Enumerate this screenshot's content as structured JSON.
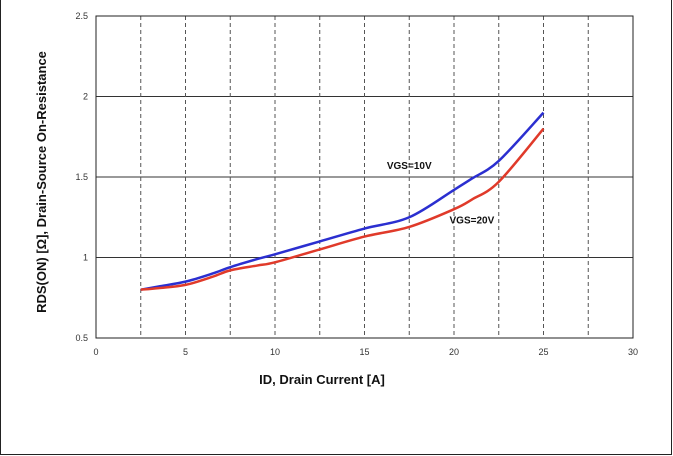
{
  "chart_data": {
    "type": "line",
    "title": "",
    "xlabel": "ID, Drain Current [A]",
    "ylabel": "RDS(ON) [Ω], Drain-Source On-Resistance",
    "xlim": [
      0,
      30
    ],
    "ylim": [
      0.5,
      2.5
    ],
    "x_ticks": [
      0,
      5,
      10,
      15,
      20,
      25,
      30
    ],
    "y_ticks": [
      0.5,
      1,
      1.5,
      2,
      2.5
    ],
    "x_tick_labels": [
      "0",
      "5",
      "10",
      "15",
      "20",
      "25",
      "30"
    ],
    "y_tick_labels": [
      "0.5",
      "1",
      "1.5",
      "2",
      "2.5"
    ],
    "grid": {
      "horizontal": "solid",
      "vertical": "dashed"
    },
    "legend": "none",
    "series": [
      {
        "name": "VGS=10V",
        "color": "#2b2fd0",
        "x": [
          2.5,
          3.5,
          5,
          6.5,
          7.5,
          9,
          10,
          12.5,
          15,
          17.5,
          20,
          21,
          22.5,
          25
        ],
        "y": [
          0.8,
          0.82,
          0.85,
          0.9,
          0.94,
          0.99,
          1.02,
          1.1,
          1.18,
          1.25,
          1.42,
          1.49,
          1.6,
          1.9
        ]
      },
      {
        "name": "VGS=20V",
        "color": "#e03a2a",
        "x": [
          2.5,
          3.5,
          5,
          6.5,
          7.5,
          9,
          10,
          12.5,
          15,
          17.5,
          20,
          21,
          22.5,
          25
        ],
        "y": [
          0.8,
          0.81,
          0.83,
          0.88,
          0.92,
          0.95,
          0.97,
          1.05,
          1.13,
          1.19,
          1.3,
          1.36,
          1.47,
          1.8
        ]
      }
    ],
    "annotations": [
      {
        "text": "VGS=10V",
        "x": 17.5,
        "y": 1.55
      },
      {
        "text": "VGS=20V",
        "x": 21,
        "y": 1.21
      }
    ]
  }
}
